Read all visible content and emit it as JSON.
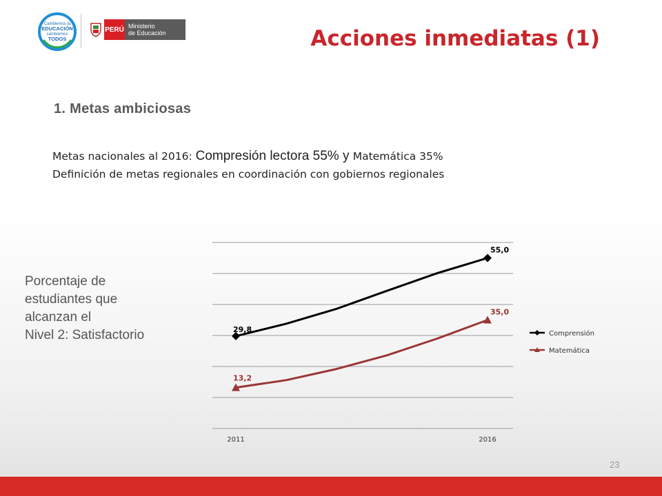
{
  "logo": {
    "campaign_lines": [
      "Cambiemos la",
      "EDUCACIÓN",
      "cambiemos",
      "TODOS"
    ],
    "country": "PERÚ",
    "ministry_lines": [
      "Ministerio",
      "de Educación"
    ]
  },
  "title": "Acciones inmediatas (1)",
  "section_heading": "1. Metas ambiciosas",
  "body": {
    "line1_a": "Metas nacionales al 2016: ",
    "line1_b": "Compresión lectora 55% y ",
    "line1_c": "Matemática 35%",
    "line2": "Definición de metas regionales en coordinación con gobiernos regionales"
  },
  "side_label_lines": [
    "Porcentaje de",
    "estudiantes que",
    "alcanzan el",
    "Nivel 2: Satisfactorio"
  ],
  "page_number": "23",
  "colors": {
    "accent": "#c8262c",
    "footer": "#d62b25",
    "comprension": "#000000",
    "matematica": "#9b3535"
  },
  "chart_data": {
    "type": "line",
    "x": [
      2011,
      2012,
      2013,
      2014,
      2015,
      2016
    ],
    "x_tick_labels": [
      "2011",
      "",
      "",
      "",
      "",
      "2016"
    ],
    "ylim": [
      0,
      60
    ],
    "y_gridlines": [
      0,
      10,
      20,
      30,
      40,
      50,
      60
    ],
    "grid": true,
    "legend_position": "right",
    "series": [
      {
        "name": "Comprensión",
        "values": [
          29.8,
          33.8,
          38.6,
          44.4,
          50.1,
          55.0
        ],
        "labeled_points": [
          "29,8",
          "",
          "",
          "",
          "",
          "55,0"
        ],
        "marker": "diamond",
        "color": "#000000"
      },
      {
        "name": "Matemática",
        "values": [
          13.2,
          15.6,
          19.2,
          23.6,
          29.0,
          35.0
        ],
        "labeled_points": [
          "13,2",
          "",
          "",
          "",
          "",
          "35,0"
        ],
        "marker": "triangle",
        "color": "#9b3535"
      }
    ]
  }
}
